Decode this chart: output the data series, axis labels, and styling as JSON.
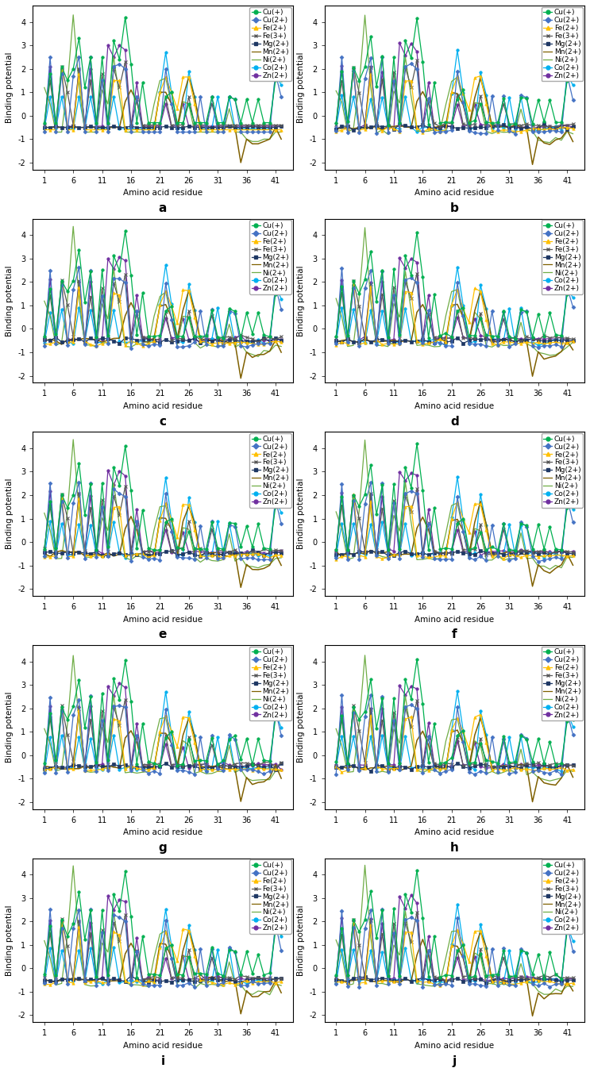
{
  "series_info": [
    {
      "name": "Cu(+)",
      "color": "#00b050",
      "marker": "o",
      "ms": 2.5,
      "lw": 0.9,
      "mew": 0.5
    },
    {
      "name": "Cu(2+)",
      "color": "#4472c4",
      "marker": "D",
      "ms": 2.5,
      "lw": 0.9,
      "mew": 0.5
    },
    {
      "name": "Fe(2+)",
      "color": "#ffc000",
      "marker": "^",
      "ms": 2.5,
      "lw": 0.9,
      "mew": 0.5
    },
    {
      "name": "Fe(3+)",
      "color": "#595959",
      "marker": "x",
      "ms": 3.0,
      "lw": 0.9,
      "mew": 0.8
    },
    {
      "name": "Mg(2+)",
      "color": "#1f3864",
      "marker": "s",
      "ms": 2.5,
      "lw": 0.9,
      "mew": 0.5
    },
    {
      "name": "Mn(2+)",
      "color": "#7f6000",
      "marker": "None",
      "ms": 0,
      "lw": 1.1,
      "mew": 0.0
    },
    {
      "name": "Ni(2+)",
      "color": "#70ad47",
      "marker": "None",
      "ms": 0,
      "lw": 0.9,
      "mew": 0.0
    },
    {
      "name": "Co(2+)",
      "color": "#00b0f0",
      "marker": "o",
      "ms": 2.5,
      "lw": 0.9,
      "mew": 0.5
    },
    {
      "name": "Zn(2+)",
      "color": "#7030a0",
      "marker": "o",
      "ms": 2.5,
      "lw": 0.9,
      "mew": 0.5
    }
  ],
  "subplot_labels": [
    "a",
    "b",
    "c",
    "d",
    "e",
    "f",
    "g",
    "h",
    "i",
    "j"
  ],
  "xlabel": "Amino acid residue",
  "ylabel": "Binding potential",
  "xticks": [
    1,
    6,
    11,
    16,
    21,
    26,
    31,
    36,
    41
  ],
  "yticks": [
    -2,
    -1,
    0,
    1,
    2,
    3,
    4
  ],
  "ylim": [
    -2.3,
    4.7
  ],
  "xlim": [
    -1,
    44
  ],
  "label_fontsize": 7.5,
  "tick_fontsize": 7,
  "legend_fontsize": 6.5
}
